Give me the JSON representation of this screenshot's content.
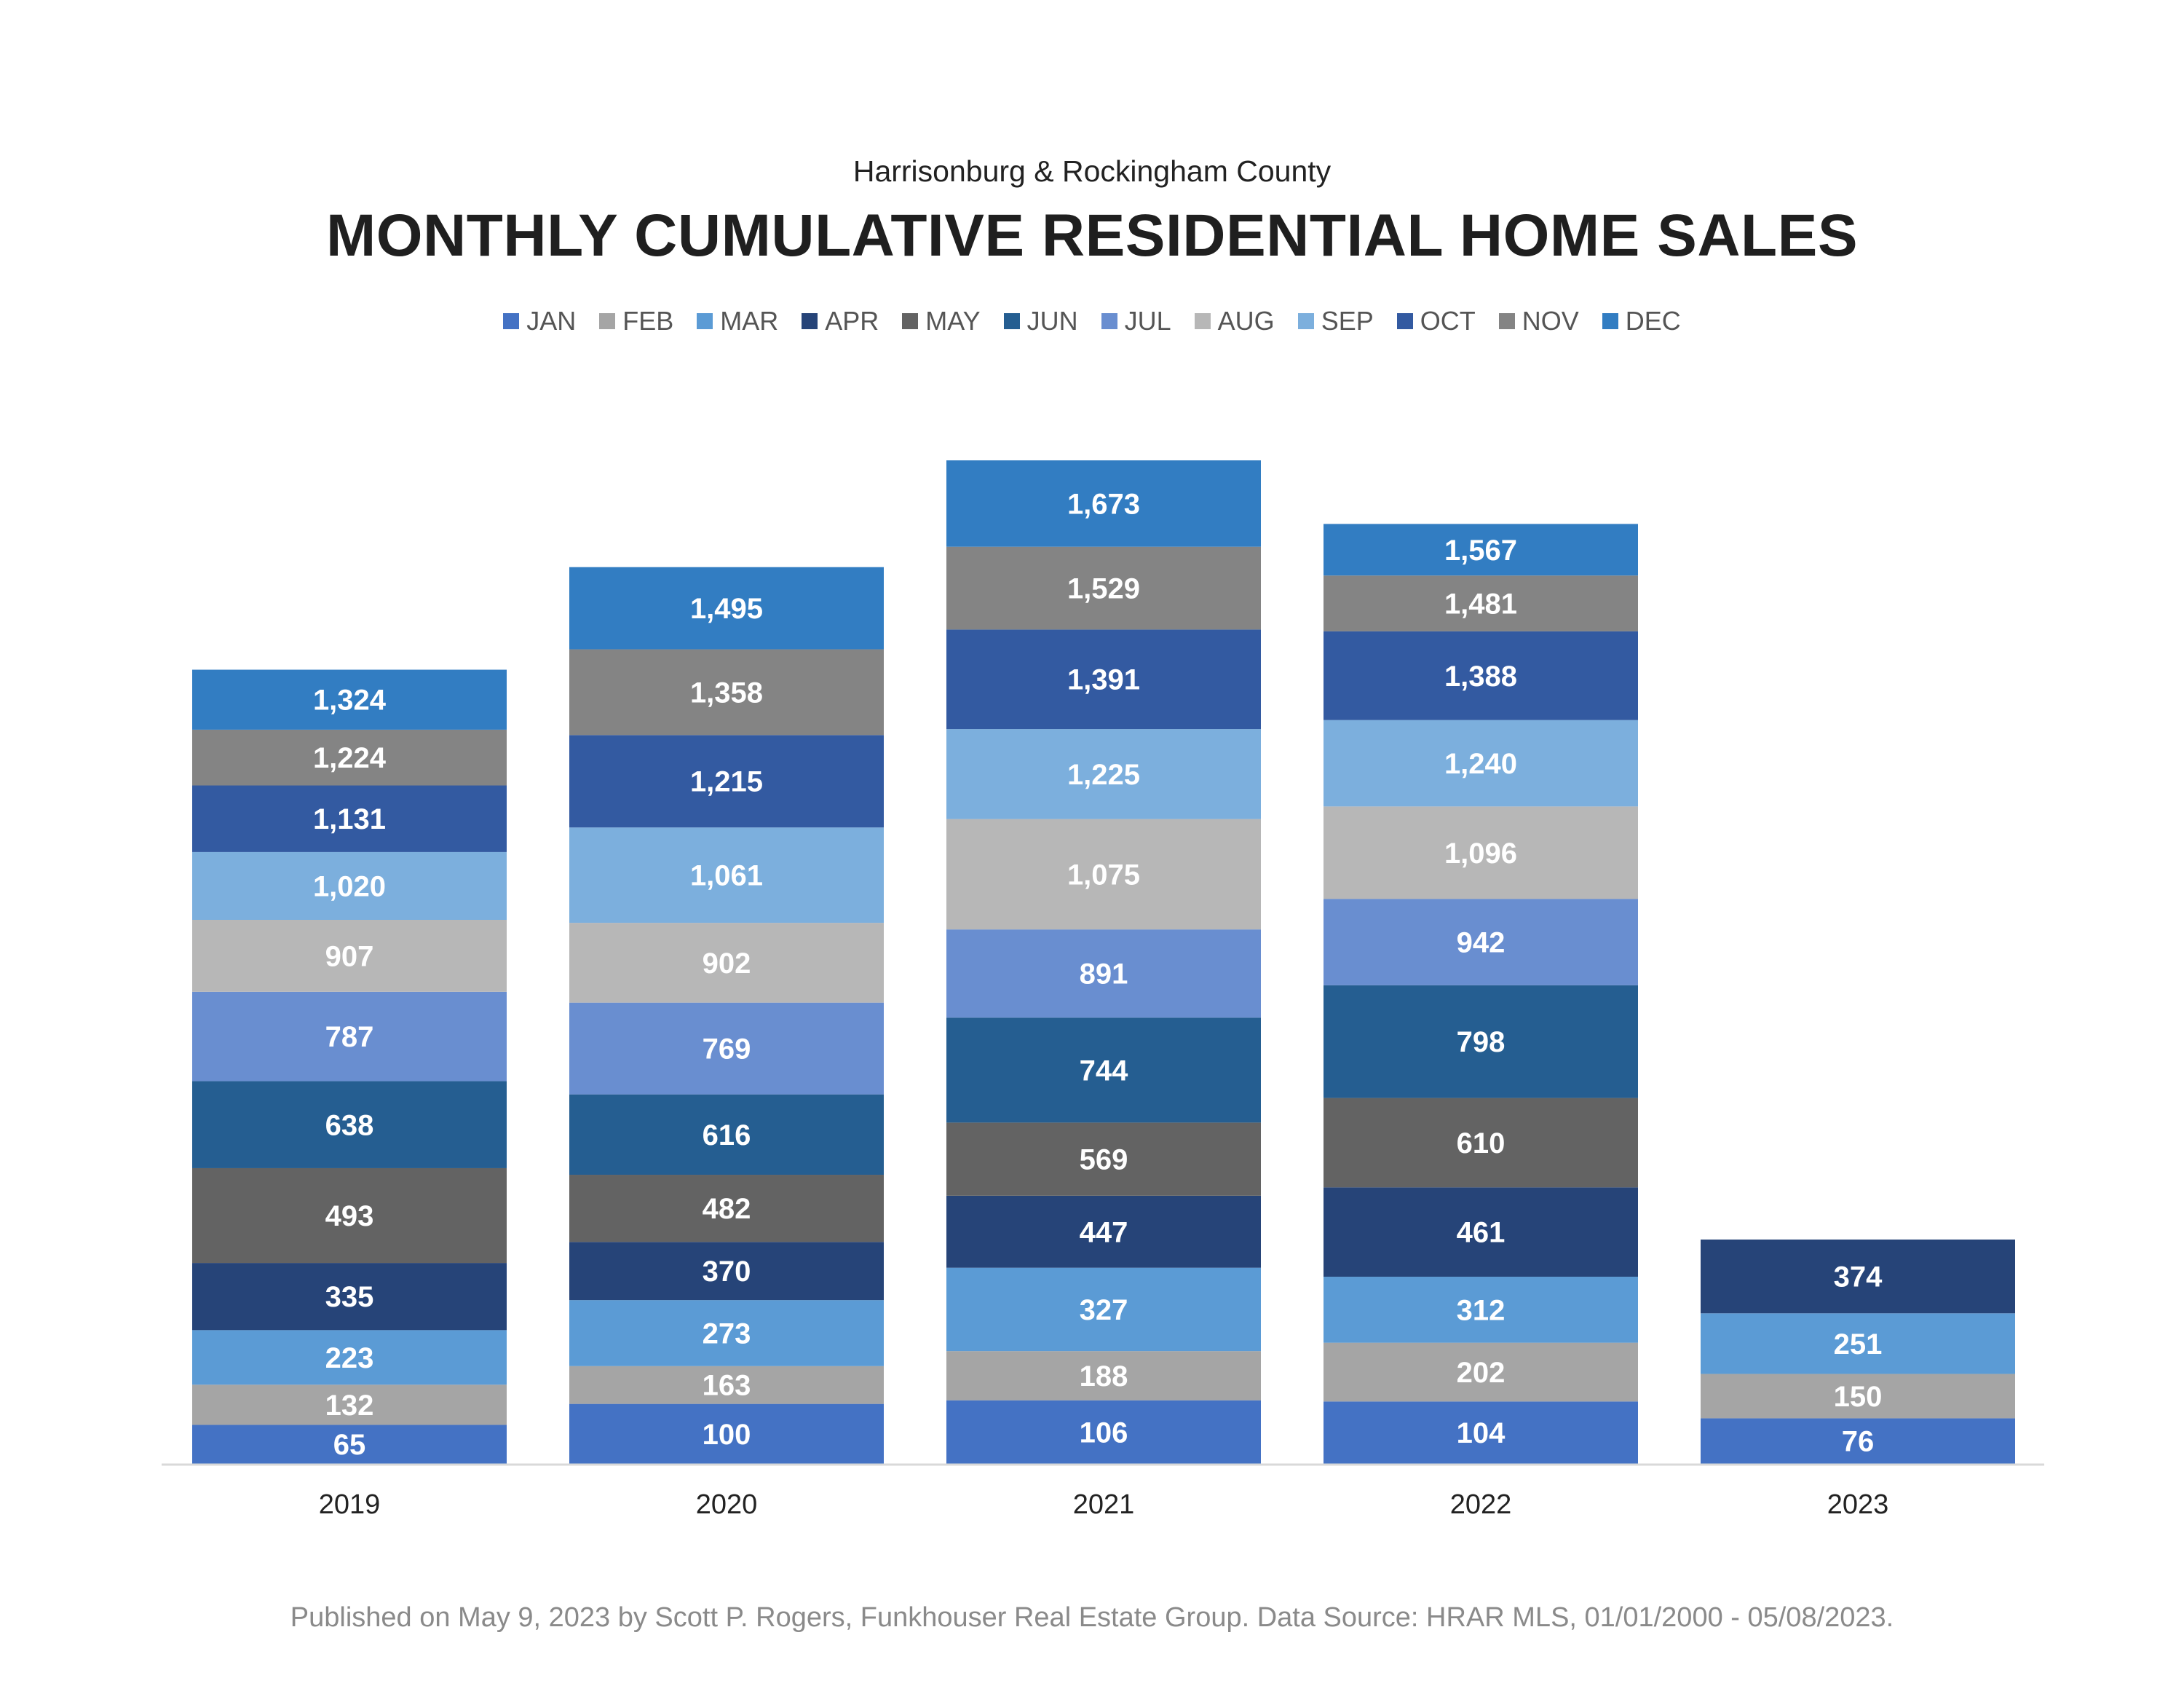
{
  "chart_data": {
    "type": "bar",
    "stacked": true,
    "subtitle": "Harrisonburg & Rockingham County",
    "title": "MONTHLY CUMULATIVE RESIDENTIAL HOME SALES",
    "categories": [
      "2019",
      "2020",
      "2021",
      "2022",
      "2023"
    ],
    "legend_position": "top",
    "grid": false,
    "series": [
      {
        "name": "JAN",
        "color": "#4472C4",
        "label_color": "#ffffff",
        "values": [
          65,
          100,
          106,
          104,
          76
        ]
      },
      {
        "name": "FEB",
        "color": "#A5A5A5",
        "label_color": "#ffffff",
        "values": [
          132,
          163,
          188,
          202,
          150
        ]
      },
      {
        "name": "MAR",
        "color": "#5B9BD5",
        "label_color": "#ffffff",
        "values": [
          223,
          273,
          327,
          312,
          251
        ]
      },
      {
        "name": "APR",
        "color": "#264478",
        "label_color": "#ffffff",
        "values": [
          335,
          370,
          447,
          461,
          374
        ]
      },
      {
        "name": "MAY",
        "color": "#636363",
        "label_color": "#ffffff",
        "values": [
          493,
          482,
          569,
          610,
          null
        ]
      },
      {
        "name": "JUN",
        "color": "#255E91",
        "label_color": "#ffffff",
        "values": [
          638,
          616,
          744,
          798,
          null
        ]
      },
      {
        "name": "JUL",
        "color": "#698ED0",
        "label_color": "#ffffff",
        "values": [
          787,
          769,
          891,
          942,
          null
        ]
      },
      {
        "name": "AUG",
        "color": "#B7B7B7",
        "label_color": "#ffffff",
        "values": [
          907,
          902,
          1075,
          1096,
          null
        ]
      },
      {
        "name": "SEP",
        "color": "#7CAFDD",
        "label_color": "#ffffff",
        "values": [
          1020,
          1061,
          1225,
          1240,
          null
        ]
      },
      {
        "name": "OCT",
        "color": "#335AA1",
        "label_color": "#ffffff",
        "values": [
          1131,
          1215,
          1391,
          1388,
          null
        ]
      },
      {
        "name": "NOV",
        "color": "#848484",
        "label_color": "#ffffff",
        "values": [
          1224,
          1358,
          1529,
          1481,
          null
        ]
      },
      {
        "name": "DEC",
        "color": "#327DC2",
        "label_color": "#ffffff",
        "values": [
          1324,
          1495,
          1673,
          1567,
          null
        ]
      }
    ]
  },
  "footer": "Published on May 9, 2023 by Scott P. Rogers, Funkhouser Real Estate Group. Data Source: HRAR MLS, 01/01/2000 - 05/08/2023."
}
